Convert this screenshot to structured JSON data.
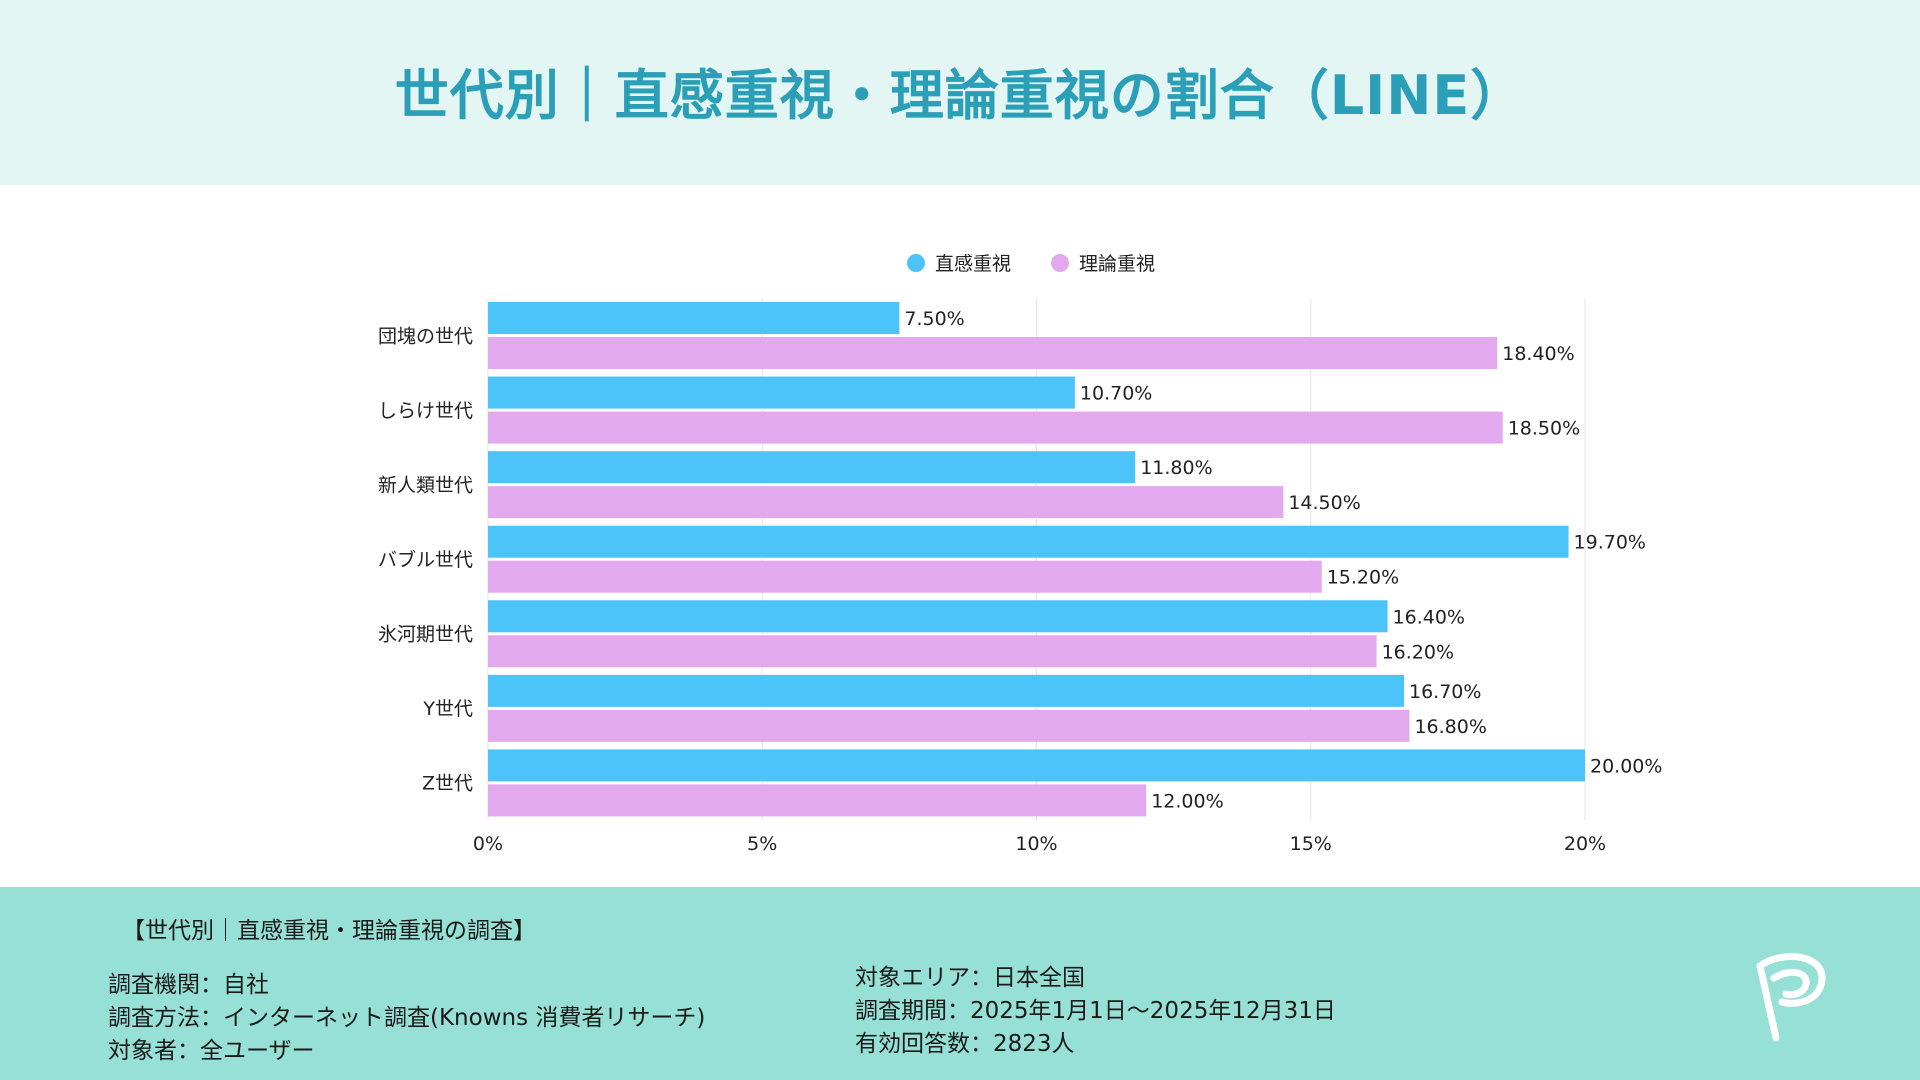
{
  "header": {
    "title": "世代別｜直感重視・理論重視の割合（LINE）"
  },
  "chart_data": {
    "type": "bar",
    "orientation": "horizontal",
    "title": "世代別｜直感重視・理論重視の割合（LINE）",
    "categories": [
      "団塊の世代",
      "しらけ世代",
      "新人類世代",
      "バブル世代",
      "氷河期世代",
      "Y世代",
      "Z世代"
    ],
    "series": [
      {
        "name": "直感重視",
        "color": "#4cc3f9",
        "values": [
          7.5,
          10.7,
          11.8,
          19.7,
          16.4,
          16.7,
          20.0
        ],
        "labels": [
          "7.50%",
          "10.70%",
          "11.80%",
          "19.70%",
          "16.40%",
          "16.70%",
          "20.00%"
        ]
      },
      {
        "name": "理論重視",
        "color": "#e2a9ee",
        "values": [
          18.4,
          18.5,
          14.5,
          15.2,
          16.2,
          16.8,
          12.0
        ],
        "labels": [
          "18.40%",
          "18.50%",
          "14.50%",
          "15.20%",
          "16.20%",
          "16.80%",
          "12.00%"
        ]
      }
    ],
    "xlim": [
      0,
      20
    ],
    "xticks": [
      0,
      5,
      10,
      15,
      20
    ],
    "xtick_labels": [
      "0%",
      "5%",
      "10%",
      "15%",
      "20%"
    ],
    "xlabel": "",
    "ylabel": "",
    "grid": true,
    "legend_position": "top-center"
  },
  "footer": {
    "heading": "【世代別｜直感重視・理論重視の調査】",
    "left": [
      "調査機関：自社",
      "調査方法：インターネット調査(Knowns 消費者リサーチ)",
      "対象者：全ユーザー"
    ],
    "right": [
      "対象エリア：日本全国",
      "調査期間：2025年1月1日〜2025年12月31日",
      "有効回答数：2823人"
    ]
  },
  "colors": {
    "header_bg": "#e4f6f3",
    "title": "#2a9fb7",
    "footer_bg": "#97e0d5",
    "gridline": "#e6e6e6",
    "logo": "#ffffff"
  },
  "logo": {
    "icon": "brand-p-logo-icon"
  }
}
